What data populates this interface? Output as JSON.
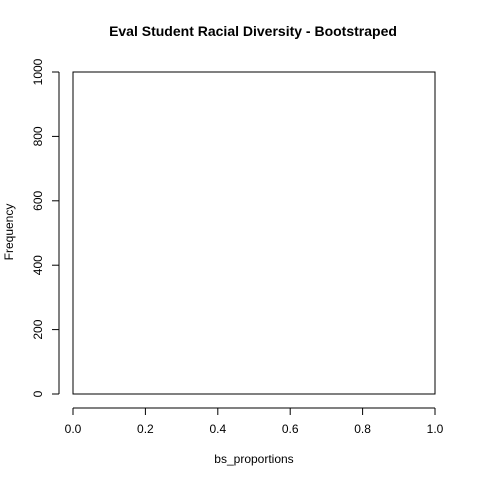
{
  "chart_data": {
    "type": "bar",
    "title": "Eval Student Racial Diversity - Bootstraped",
    "xlabel": "bs_proportions",
    "ylabel": "Frequency",
    "xlim": [
      0,
      1
    ],
    "ylim": [
      0,
      1000
    ],
    "x_ticks": [
      0.0,
      0.2,
      0.4,
      0.6,
      0.8,
      1.0
    ],
    "x_tick_labels": [
      "0.0",
      "0.2",
      "0.4",
      "0.6",
      "0.8",
      "1.0"
    ],
    "y_ticks": [
      0,
      200,
      400,
      600,
      800,
      1000
    ],
    "y_tick_labels": [
      "0",
      "200",
      "400",
      "600",
      "800",
      "1000"
    ],
    "bins": [],
    "grid": false,
    "colors": {
      "axis": "#000000",
      "frame": "#000000",
      "text": "#000000",
      "background": "#ffffff"
    }
  }
}
